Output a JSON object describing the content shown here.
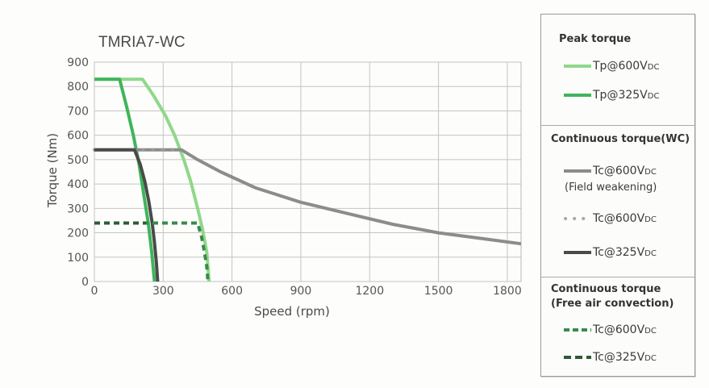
{
  "chart_data": {
    "type": "line",
    "title": "TMRIA7-WC",
    "xlabel": "Speed (rpm)",
    "ylabel": "Torque (Nm)",
    "xlim": [
      0,
      1860
    ],
    "ylim": [
      0,
      900
    ],
    "x_ticks": [
      "0",
      "300",
      "600",
      "900",
      "1200",
      "1500",
      "1800"
    ],
    "y_ticks": [
      "0",
      "100",
      "200",
      "300",
      "400",
      "500",
      "600",
      "700",
      "800",
      "900"
    ],
    "grid": true,
    "legend_position": "right",
    "series": [
      {
        "name": "Tp@600VDC",
        "group": "Peak torque",
        "color": "#8fd88a",
        "style": "solid",
        "points": [
          [
            0,
            830
          ],
          [
            210,
            830
          ],
          [
            260,
            760
          ],
          [
            310,
            680
          ],
          [
            350,
            600
          ],
          [
            390,
            500
          ],
          [
            420,
            410
          ],
          [
            450,
            300
          ],
          [
            470,
            220
          ],
          [
            490,
            120
          ],
          [
            500,
            0
          ]
        ]
      },
      {
        "name": "Tp@325VDC",
        "group": "Peak torque",
        "color": "#3fb55a",
        "style": "solid",
        "points": [
          [
            0,
            830
          ],
          [
            110,
            830
          ],
          [
            140,
            720
          ],
          [
            170,
            600
          ],
          [
            195,
            480
          ],
          [
            215,
            360
          ],
          [
            235,
            240
          ],
          [
            250,
            120
          ],
          [
            262,
            0
          ]
        ]
      },
      {
        "name": "Tc@600VDC (Field weakening)",
        "group": "Continuous torque(WC)",
        "color": "#8c8c8c",
        "style": "solid",
        "points": [
          [
            0,
            540
          ],
          [
            380,
            540
          ],
          [
            450,
            500
          ],
          [
            550,
            450
          ],
          [
            700,
            385
          ],
          [
            900,
            325
          ],
          [
            1100,
            280
          ],
          [
            1300,
            235
          ],
          [
            1500,
            200
          ],
          [
            1700,
            175
          ],
          [
            1860,
            155
          ]
        ]
      },
      {
        "name": "Tc@600VDC",
        "group": "Continuous torque(WC)",
        "color": "#9a9a9a",
        "style": "dotted",
        "points": [
          [
            0,
            540
          ],
          [
            380,
            540
          ]
        ]
      },
      {
        "name": "Tc@325VDC",
        "group": "Continuous torque(WC)",
        "color": "#4a4a4a",
        "style": "solid",
        "points": [
          [
            0,
            540
          ],
          [
            175,
            540
          ],
          [
            200,
            480
          ],
          [
            220,
            410
          ],
          [
            237,
            330
          ],
          [
            252,
            240
          ],
          [
            262,
            160
          ],
          [
            270,
            80
          ],
          [
            276,
            0
          ]
        ]
      },
      {
        "name": "Tc@600VDC",
        "group": "Continuous torque (Free air convection)",
        "color": "#3a8a4a",
        "style": "dashed",
        "points": [
          [
            0,
            240
          ],
          [
            450,
            240
          ],
          [
            468,
            180
          ],
          [
            480,
            120
          ],
          [
            490,
            60
          ],
          [
            495,
            0
          ]
        ]
      },
      {
        "name": "Tc@325VDC",
        "group": "Continuous torque (Free air convection)",
        "color": "#2e5a38",
        "style": "dashed",
        "points": [
          [
            0,
            240
          ],
          [
            225,
            240
          ]
        ]
      }
    ]
  },
  "legend": {
    "peak_title": "Peak torque",
    "peak_1": "Tp@600V",
    "peak_2": "Tp@325V",
    "cont_wc_title": "Continuous torque(WC)",
    "wc_1": "Tc@600V",
    "wc_1_note": "(Field weakening)",
    "wc_2": "Tc@600V",
    "wc_3": "Tc@325V",
    "air_title_1": "Continuous torque",
    "air_title_2": "(Free air convection)",
    "air_1": "Tc@600V",
    "air_2": "Tc@325V",
    "sub": "DC"
  }
}
